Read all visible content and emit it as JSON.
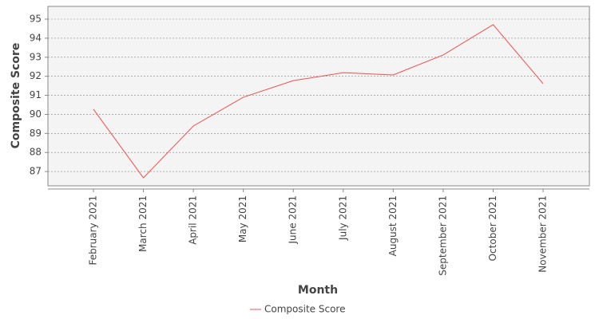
{
  "chart_data": {
    "type": "line",
    "x_label": "Month",
    "y_label": "Composite Score",
    "categories": [
      "February 2021",
      "March 2021",
      "April 2021",
      "May 2021",
      "June 2021",
      "July 2021",
      "August 2021",
      "September 2021",
      "October 2021",
      "November 2021"
    ],
    "series": [
      {
        "name": "Composite Score",
        "color": "#f05050",
        "values": [
          90.27,
          86.67,
          89.39,
          90.9,
          91.77,
          92.19,
          92.07,
          93.12,
          94.71,
          91.61
        ]
      }
    ],
    "ylim": [
      86.25,
      95.67
    ],
    "yticks": [
      87,
      88,
      89,
      90,
      91,
      92,
      93,
      94,
      95
    ],
    "grid": true
  }
}
